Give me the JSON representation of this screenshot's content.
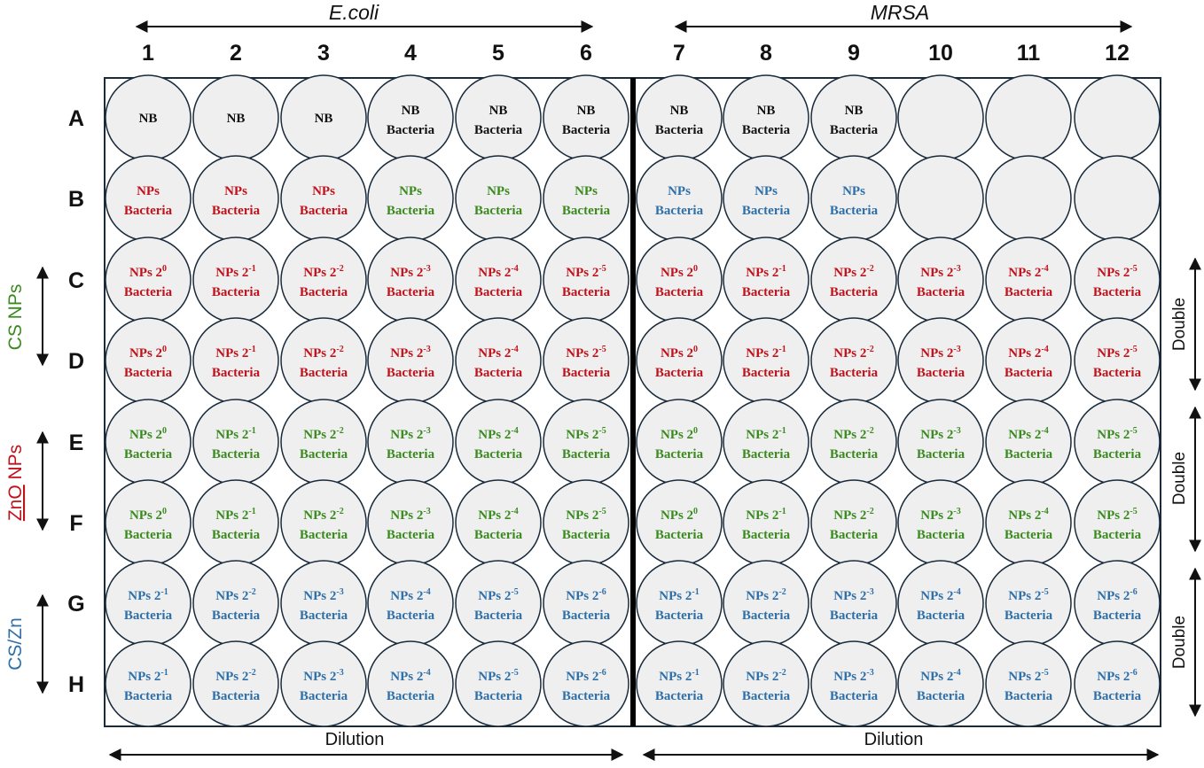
{
  "headers": {
    "ecoli": "E.coli",
    "mrsa": "MRSA"
  },
  "columns": [
    "1",
    "2",
    "3",
    "4",
    "5",
    "6",
    "7",
    "8",
    "9",
    "10",
    "11",
    "12"
  ],
  "rows": [
    "A",
    "B",
    "C",
    "D",
    "E",
    "F",
    "G",
    "H"
  ],
  "side_labels": {
    "cs_nps": "CS NPs",
    "zno_prefix": "ZnO",
    "zno_suffix": " NPs",
    "cs_zn": "CS/Zn"
  },
  "double_labels": [
    "Double",
    "Double",
    "Double"
  ],
  "dilution_labels": [
    "Dilution",
    "Dilution"
  ],
  "colors": {
    "black": "#111111",
    "red": "#c0121b",
    "green": "#3a8a1f",
    "blue": "#2e6fa8",
    "well_fill": "#efefef",
    "well_stroke": "#1a2b3c",
    "plate_stroke": "#1a2b3c"
  },
  "wells": [
    [
      {
        "l1": "NB",
        "l2": "",
        "c": "black"
      },
      {
        "l1": "NB",
        "l2": "",
        "c": "black"
      },
      {
        "l1": "NB",
        "l2": "",
        "c": "black"
      },
      {
        "l1": "NB",
        "l2": "Bacteria",
        "c": "black"
      },
      {
        "l1": "NB",
        "l2": "Bacteria",
        "c": "black"
      },
      {
        "l1": "NB",
        "l2": "Bacteria",
        "c": "black"
      },
      {
        "l1": "NB",
        "l2": "Bacteria",
        "c": "black"
      },
      {
        "l1": "NB",
        "l2": "Bacteria",
        "c": "black"
      },
      {
        "l1": "NB",
        "l2": "Bacteria",
        "c": "black"
      },
      {
        "l1": "",
        "l2": "",
        "c": "black"
      },
      {
        "l1": "",
        "l2": "",
        "c": "black"
      },
      {
        "l1": "",
        "l2": "",
        "c": "black"
      }
    ],
    [
      {
        "l1": "NPs",
        "l2": "Bacteria",
        "c": "red"
      },
      {
        "l1": "NPs",
        "l2": "Bacteria",
        "c": "red"
      },
      {
        "l1": "NPs",
        "l2": "Bacteria",
        "c": "red"
      },
      {
        "l1": "NPs",
        "l2": "Bacteria",
        "c": "green"
      },
      {
        "l1": "NPs",
        "l2": "Bacteria",
        "c": "green"
      },
      {
        "l1": "NPs",
        "l2": "Bacteria",
        "c": "green"
      },
      {
        "l1": "NPs",
        "l2": "Bacteria",
        "c": "blue"
      },
      {
        "l1": "NPs",
        "l2": "Bacteria",
        "c": "blue"
      },
      {
        "l1": "NPs",
        "l2": "Bacteria",
        "c": "blue"
      },
      {
        "l1": "",
        "l2": "",
        "c": "black"
      },
      {
        "l1": "",
        "l2": "",
        "c": "black"
      },
      {
        "l1": "",
        "l2": "",
        "c": "black"
      }
    ],
    [
      {
        "l1": "NPs 2",
        "e": "0",
        "l2": "Bacteria",
        "c": "red"
      },
      {
        "l1": "NPs 2",
        "e": "-1",
        "l2": "Bacteria",
        "c": "red"
      },
      {
        "l1": "NPs 2",
        "e": "-2",
        "l2": "Bacteria",
        "c": "red"
      },
      {
        "l1": "NPs 2",
        "e": "-3",
        "l2": "Bacteria",
        "c": "red"
      },
      {
        "l1": "NPs 2",
        "e": "-4",
        "l2": "Bacteria",
        "c": "red"
      },
      {
        "l1": "NPs 2",
        "e": "-5",
        "l2": "Bacteria",
        "c": "red"
      },
      {
        "l1": "NPs 2",
        "e": "0",
        "l2": "Bacteria",
        "c": "red"
      },
      {
        "l1": "NPs 2",
        "e": "-1",
        "l2": "Bacteria",
        "c": "red"
      },
      {
        "l1": "NPs 2",
        "e": "-2",
        "l2": "Bacteria",
        "c": "red"
      },
      {
        "l1": "NPs 2",
        "e": "-3",
        "l2": "Bacteria",
        "c": "red"
      },
      {
        "l1": "NPs 2",
        "e": "-4",
        "l2": "Bacteria",
        "c": "red"
      },
      {
        "l1": "NPs 2",
        "e": "-5",
        "l2": "Bacteria",
        "c": "red"
      }
    ],
    [
      {
        "l1": "NPs 2",
        "e": "0",
        "l2": "Bacteria",
        "c": "red"
      },
      {
        "l1": "NPs 2",
        "e": "-1",
        "l2": "Bacteria",
        "c": "red"
      },
      {
        "l1": "NPs 2",
        "e": "-2",
        "l2": "Bacteria",
        "c": "red"
      },
      {
        "l1": "NPs 2",
        "e": "-3",
        "l2": "Bacteria",
        "c": "red"
      },
      {
        "l1": "NPs 2",
        "e": "-4",
        "l2": "Bacteria",
        "c": "red"
      },
      {
        "l1": "NPs 2",
        "e": "-5",
        "l2": "Bacteria",
        "c": "red"
      },
      {
        "l1": "NPs 2",
        "e": "0",
        "l2": "Bacteria",
        "c": "red"
      },
      {
        "l1": "NPs 2",
        "e": "-1",
        "l2": "Bacteria",
        "c": "red"
      },
      {
        "l1": "NPs 2",
        "e": "-2",
        "l2": "Bacteria",
        "c": "red"
      },
      {
        "l1": "NPs 2",
        "e": "-3",
        "l2": "Bacteria",
        "c": "red"
      },
      {
        "l1": "NPs 2",
        "e": "-4",
        "l2": "Bacteria",
        "c": "red"
      },
      {
        "l1": "NPs 2",
        "e": "-5",
        "l2": "Bacteria",
        "c": "red"
      }
    ],
    [
      {
        "l1": "NPs 2",
        "e": "0",
        "l2": "Bacteria",
        "c": "green"
      },
      {
        "l1": "NPs 2",
        "e": "-1",
        "l2": "Bacteria",
        "c": "green"
      },
      {
        "l1": "NPs 2",
        "e": "-2",
        "l2": "Bacteria",
        "c": "green"
      },
      {
        "l1": "NPs 2",
        "e": "-3",
        "l2": "Bacteria",
        "c": "green"
      },
      {
        "l1": "NPs 2",
        "e": "-4",
        "l2": "Bacteria",
        "c": "green"
      },
      {
        "l1": "NPs 2",
        "e": "-5",
        "l2": "Bacteria",
        "c": "green"
      },
      {
        "l1": "NPs 2",
        "e": "0",
        "l2": "Bacteria",
        "c": "green"
      },
      {
        "l1": "NPs 2",
        "e": "-1",
        "l2": "Bacteria",
        "c": "green"
      },
      {
        "l1": "NPs 2",
        "e": "-2",
        "l2": "Bacteria",
        "c": "green"
      },
      {
        "l1": "NPs 2",
        "e": "-3",
        "l2": "Bacteria",
        "c": "green"
      },
      {
        "l1": "NPs 2",
        "e": "-4",
        "l2": "Bacteria",
        "c": "green"
      },
      {
        "l1": "NPs 2",
        "e": "-5",
        "l2": "Bacteria",
        "c": "green"
      }
    ],
    [
      {
        "l1": "NPs 2",
        "e": "0",
        "l2": "Bacteria",
        "c": "green"
      },
      {
        "l1": "NPs 2",
        "e": "-1",
        "l2": "Bacteria",
        "c": "green"
      },
      {
        "l1": "NPs 2",
        "e": "-2",
        "l2": "Bacteria",
        "c": "green"
      },
      {
        "l1": "NPs 2",
        "e": "-3",
        "l2": "Bacteria",
        "c": "green"
      },
      {
        "l1": "NPs 2",
        "e": "-4",
        "l2": "Bacteria",
        "c": "green"
      },
      {
        "l1": "NPs 2",
        "e": "-5",
        "l2": "Bacteria",
        "c": "green"
      },
      {
        "l1": "NPs 2",
        "e": "0",
        "l2": "Bacteria",
        "c": "green"
      },
      {
        "l1": "NPs 2",
        "e": "-1",
        "l2": "Bacteria",
        "c": "green"
      },
      {
        "l1": "NPs 2",
        "e": "-2",
        "l2": "Bacteria",
        "c": "green"
      },
      {
        "l1": "NPs 2",
        "e": "-3",
        "l2": "Bacteria",
        "c": "green"
      },
      {
        "l1": "NPs 2",
        "e": "-4",
        "l2": "Bacteria",
        "c": "green"
      },
      {
        "l1": "NPs 2",
        "e": "-5",
        "l2": "Bacteria",
        "c": "green"
      }
    ],
    [
      {
        "l1": "NPs 2",
        "e": "-1",
        "l2": "Bacteria",
        "c": "blue"
      },
      {
        "l1": "NPs 2",
        "e": "-2",
        "l2": "Bacteria",
        "c": "blue"
      },
      {
        "l1": "NPs 2",
        "e": "-3",
        "l2": "Bacteria",
        "c": "blue"
      },
      {
        "l1": "NPs 2",
        "e": "-4",
        "l2": "Bacteria",
        "c": "blue"
      },
      {
        "l1": "NPs 2",
        "e": "-5",
        "l2": "Bacteria",
        "c": "blue"
      },
      {
        "l1": "NPs 2",
        "e": "-6",
        "l2": "Bacteria",
        "c": "blue"
      },
      {
        "l1": "NPs 2",
        "e": "-1",
        "l2": "Bacteria",
        "c": "blue"
      },
      {
        "l1": "NPs 2",
        "e": "-2",
        "l2": "Bacteria",
        "c": "blue"
      },
      {
        "l1": "NPs 2",
        "e": "-3",
        "l2": "Bacteria",
        "c": "blue"
      },
      {
        "l1": "NPs 2",
        "e": "-4",
        "l2": "Bacteria",
        "c": "blue"
      },
      {
        "l1": "NPs 2",
        "e": "-5",
        "l2": "Bacteria",
        "c": "blue"
      },
      {
        "l1": "NPs 2",
        "e": "-6",
        "l2": "Bacteria",
        "c": "blue"
      }
    ],
    [
      {
        "l1": "NPs 2",
        "e": "-1",
        "l2": "Bacteria",
        "c": "blue"
      },
      {
        "l1": "NPs 2",
        "e": "-2",
        "l2": "Bacteria",
        "c": "blue"
      },
      {
        "l1": "NPs 2",
        "e": "-3",
        "l2": "Bacteria",
        "c": "blue"
      },
      {
        "l1": "NPs 2",
        "e": "-4",
        "l2": "Bacteria",
        "c": "blue"
      },
      {
        "l1": "NPs 2",
        "e": "-5",
        "l2": "Bacteria",
        "c": "blue"
      },
      {
        "l1": "NPs 2",
        "e": "-6",
        "l2": "Bacteria",
        "c": "blue"
      },
      {
        "l1": "NPs 2",
        "e": "-1",
        "l2": "Bacteria",
        "c": "blue"
      },
      {
        "l1": "NPs 2",
        "e": "-2",
        "l2": "Bacteria",
        "c": "blue"
      },
      {
        "l1": "NPs 2",
        "e": "-3",
        "l2": "Bacteria",
        "c": "blue"
      },
      {
        "l1": "NPs 2",
        "e": "-4",
        "l2": "Bacteria",
        "c": "blue"
      },
      {
        "l1": "NPs 2",
        "e": "-5",
        "l2": "Bacteria",
        "c": "blue"
      },
      {
        "l1": "NPs 2",
        "e": "-6",
        "l2": "Bacteria",
        "c": "blue"
      }
    ]
  ]
}
